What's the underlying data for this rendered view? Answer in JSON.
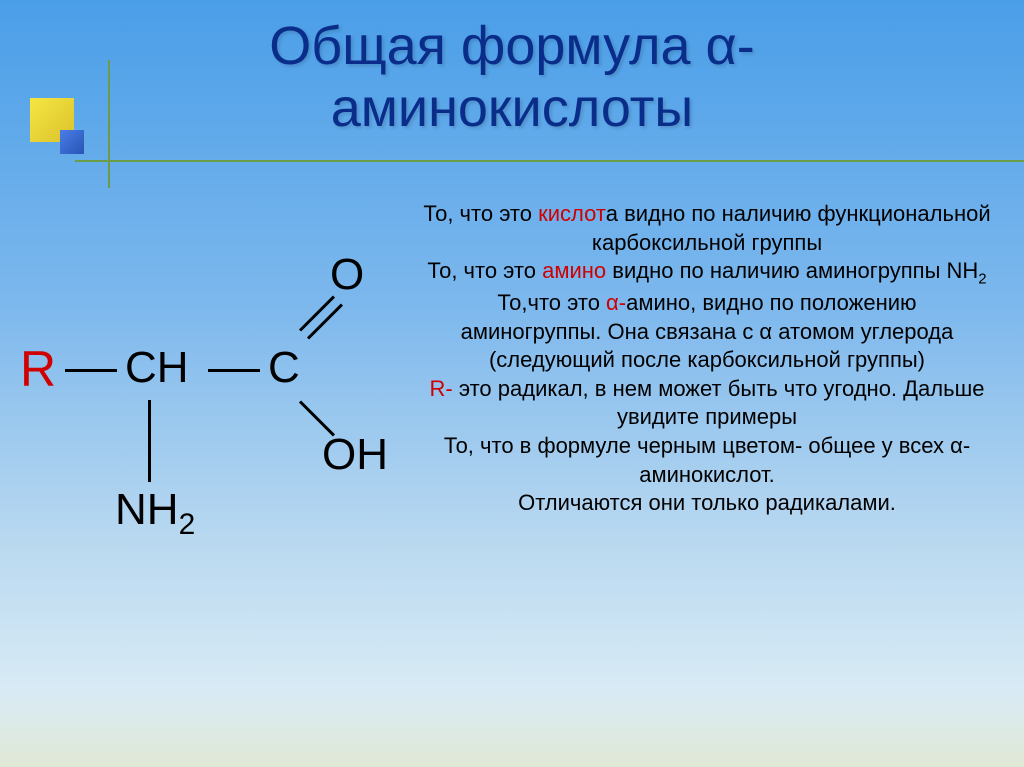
{
  "title_line1": "Общая формула α-",
  "title_line2": "аминокислоты",
  "formula": {
    "R": "R",
    "CH": "CH",
    "C": "C",
    "O": "O",
    "OH": "OH",
    "NH2_base": "NH",
    "NH2_sub": "2"
  },
  "text": {
    "p1a": "То, что это ",
    "p1b": "кислот",
    "p1c": "а видно по наличию функциональной карбоксильной группы",
    "p2a": "То, что это ",
    "p2b": "амино",
    "p2c": "  видно по наличию аминогруппы NH",
    "p2sub": "2",
    "p3a": "То,что это ",
    "p3b": "α-",
    "p3c": "амино, видно по положению",
    "p4": "аминогруппы. Она связана с α атомом углерода  (следующий после карбоксильной группы)",
    "p5a": "R-",
    "p5b": "  это радикал, в нем может быть что угодно. Дальше увидите примеры",
    "p6": "То, что в формуле черным цветом- общее у всех α-аминокислот.",
    "p7": "Отличаются они только радикалами."
  },
  "colors": {
    "title": "#0a2d8a",
    "highlight": "#d00000",
    "line": "#6c9c48",
    "bg_top": "#4a9ee8",
    "bg_bottom": "#e0e8d5"
  }
}
